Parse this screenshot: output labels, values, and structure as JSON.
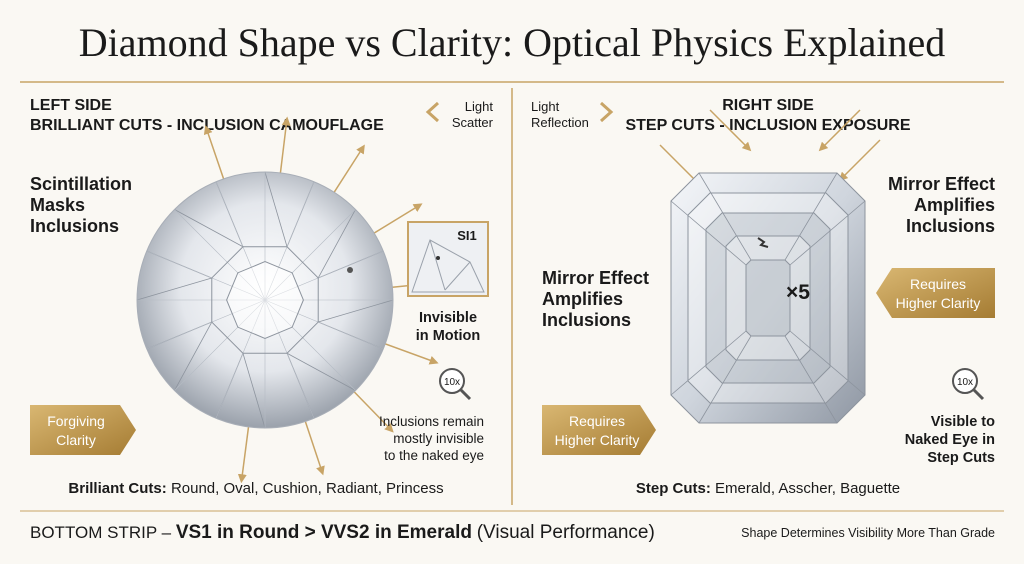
{
  "title": "Diamond Shape vs Clarity: Optical Physics Explained",
  "left": {
    "side": "LEFT SIDE",
    "heading": "BRILLIANT CUTS - INCLUSION CAMOUFLAGE",
    "arrow_label": [
      "Light",
      "Scatter"
    ],
    "callout": [
      "Scintillation",
      "Masks",
      "Inclusions"
    ],
    "inset_grade": "SI1",
    "inset_caption": [
      "Invisible",
      "in Motion"
    ],
    "magnifier": "10x",
    "note": [
      "Inclusions remain",
      "mostly invisible",
      "to the naked eye"
    ],
    "badge": [
      "Forgiving",
      "Clarity"
    ],
    "cuts_label": "Brilliant Cuts:",
    "cuts": "Round, Oval, Cushion, Radiant, Princess"
  },
  "right": {
    "side": "RIGHT SIDE",
    "heading": "STEP CUTS - INCLUSION EXPOSURE",
    "arrow_label": [
      "Light",
      "Reflection"
    ],
    "callout_top": [
      "Mirror Effect",
      "Amplifies",
      "Inclusions"
    ],
    "callout_left": [
      "Mirror Effect",
      "Amplifies",
      "Inclusions"
    ],
    "multiplier": "×5",
    "badge_top": [
      "Requires",
      "Higher Clarity"
    ],
    "badge_bottom": [
      "Requires",
      "Higher Clarity"
    ],
    "magnifier": "10x",
    "note": [
      "Visible to",
      "Naked Eye in",
      "Step Cuts"
    ],
    "cuts_label": "Step Cuts:",
    "cuts": "Emerald, Asscher, Baguette"
  },
  "bottom": {
    "label": "BOTTOM STRIP –",
    "highlight": "VS1 in Round > VVS2 in Emerald",
    "suffix": "(Visual Performance)",
    "tagline": "Shape Determines Visibility More Than Grade"
  }
}
